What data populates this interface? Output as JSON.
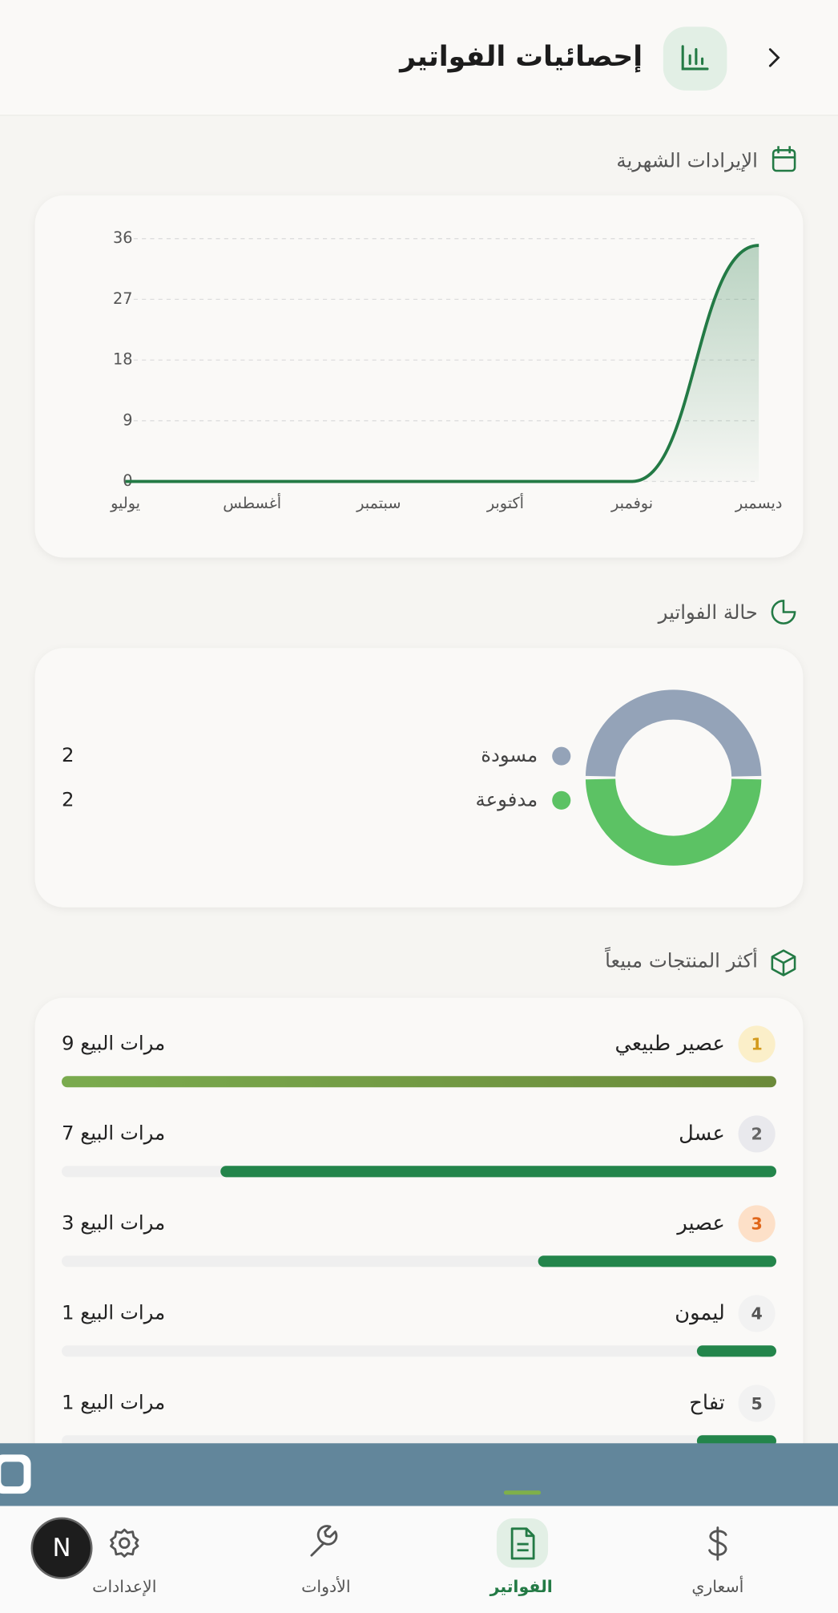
{
  "header": {
    "title": "إحصائيات الفواتير"
  },
  "revenue": {
    "title": "الإيرادات الشهرية",
    "chart": {
      "type": "line",
      "categories": [
        "يوليو",
        "أغسطس",
        "سبتمبر",
        "أكتوبر",
        "نوفمبر",
        "ديسمبر"
      ],
      "values": [
        0,
        0,
        0,
        0,
        0,
        35
      ],
      "ylim": [
        0,
        36
      ],
      "yticks": [
        0,
        9,
        18,
        27,
        36
      ],
      "grid": true,
      "color": "#237a45"
    }
  },
  "status": {
    "title": "حالة الفواتير",
    "chart": {
      "type": "donut",
      "categories": [
        "مسودة",
        "مدفوعة"
      ],
      "values": [
        2,
        2
      ],
      "colors": [
        "#94a3b8",
        "#5cc264"
      ]
    }
  },
  "products": {
    "title": "أكثر المنتجات مبيعاً",
    "chart": {
      "type": "bar",
      "ranks": [
        1,
        2,
        3,
        4,
        5
      ],
      "categories": [
        "عصير طبيعي",
        "عسل",
        "عصير",
        "ليمون",
        "تفاح"
      ],
      "values": [
        9,
        7,
        3,
        1,
        1
      ],
      "value_labels": [
        "9 مرات البيع",
        "7 مرات البيع",
        "3 مرات البيع",
        "1 مرات البيع",
        "1 مرات البيع"
      ],
      "colors": [
        "#78a046",
        "#23854b",
        "#23854b",
        "#23854b",
        "#23854b"
      ]
    }
  },
  "nav": {
    "tabs": [
      "أسعاري",
      "الفواتير",
      "الأدوات",
      "الإعدادات"
    ],
    "active": 1
  },
  "dev_badge": "N"
}
